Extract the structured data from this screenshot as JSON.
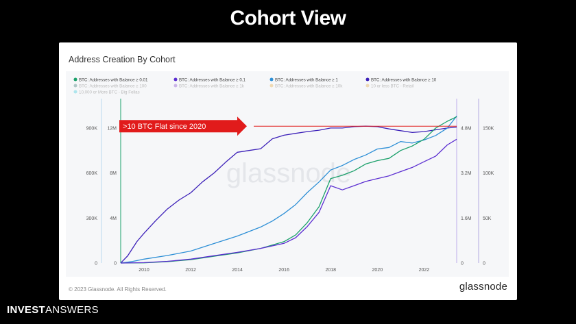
{
  "slide": {
    "title": "Cohort View",
    "footer_bold": "INVEST",
    "footer_thin": "ANSWERS"
  },
  "card": {
    "title": "Address Creation By Cohort",
    "copyright": "© 2023 Glassnode. All Rights Reserved.",
    "brand": "glassnode",
    "watermark": "glassnode"
  },
  "colors": {
    "green": "#1aa06a",
    "purple": "#5b2ed1",
    "blue": "#2d8fd6",
    "indigo": "#3b1fb8",
    "red": "#e11b1b",
    "faded": "#c9c9c9"
  },
  "chart_data": {
    "type": "line",
    "legend": [
      {
        "name": "BTC: Addresses with Balance ≥ 0.01",
        "color": "#1aa06a",
        "active": true
      },
      {
        "name": "BTC: Addresses with Balance ≥ 0.1",
        "color": "#5b2ed1",
        "active": true
      },
      {
        "name": "BTC: Addresses with Balance ≥ 1",
        "color": "#2d8fd6",
        "active": true
      },
      {
        "name": "BTC: Addresses with Balance ≥ 10",
        "color": "#3b1fb8",
        "active": true
      },
      {
        "name": "BTC: Addresses with Balance ≥ 100",
        "color": "#2a6e6a",
        "active": false
      },
      {
        "name": "BTC: Addresses with Balance ≥ 1k",
        "color": "#7a3ac8",
        "active": false
      },
      {
        "name": "BTC: Addresses with Balance ≥ 10k",
        "color": "#e0a030",
        "active": false
      },
      {
        "name": "10 or less BTC - Retail",
        "color": "#e0a030",
        "active": false
      },
      {
        "name": "10,000 or More BTC - Big Fellas",
        "color": "#28c4d8",
        "active": false
      }
    ],
    "x_ticks": [
      "2010",
      "2012",
      "2014",
      "2016",
      "2018",
      "2020",
      "2022"
    ],
    "x_range": [
      2009,
      2023.4
    ],
    "axes": {
      "left_outer": {
        "ticks": [
          "0",
          "300K",
          "600K",
          "900K"
        ],
        "range": [
          0,
          1050000
        ]
      },
      "left_inner": {
        "ticks": [
          "0",
          "4M",
          "8M",
          "12M"
        ],
        "range": [
          0,
          14000000
        ]
      },
      "right_inner": {
        "ticks": [
          "0",
          "1.6M",
          "3.2M",
          "4.8M"
        ],
        "range": [
          0,
          5600000
        ]
      },
      "right_outer": {
        "ticks": [
          "0",
          "50K",
          "100K",
          "150K"
        ],
        "range": [
          0,
          175000
        ]
      }
    },
    "series": [
      {
        "name": "BTC: Addresses with Balance ≥ 10",
        "color": "#3b1fb8",
        "axis": "right_outer",
        "points": [
          [
            2009.0,
            0
          ],
          [
            2009.3,
            8000
          ],
          [
            2009.7,
            24000
          ],
          [
            2010.0,
            33000
          ],
          [
            2010.5,
            47000
          ],
          [
            2011.0,
            60000
          ],
          [
            2011.5,
            70000
          ],
          [
            2012.0,
            78000
          ],
          [
            2012.5,
            90000
          ],
          [
            2013.0,
            100000
          ],
          [
            2013.5,
            112000
          ],
          [
            2014.0,
            123000
          ],
          [
            2014.5,
            125000
          ],
          [
            2015.0,
            127000
          ],
          [
            2015.5,
            138000
          ],
          [
            2016.0,
            142000
          ],
          [
            2016.5,
            144000
          ],
          [
            2017.0,
            146000
          ],
          [
            2017.5,
            147500
          ],
          [
            2018.0,
            150000
          ],
          [
            2018.5,
            150000
          ],
          [
            2019.0,
            151500
          ],
          [
            2019.5,
            152000
          ],
          [
            2020.0,
            151500
          ],
          [
            2020.5,
            149000
          ],
          [
            2021.0,
            147000
          ],
          [
            2021.5,
            145000
          ],
          [
            2022.0,
            146000
          ],
          [
            2022.5,
            148000
          ],
          [
            2023.0,
            150000
          ],
          [
            2023.4,
            151000
          ]
        ]
      },
      {
        "name": "BTC: Addresses with Balance ≥ 1",
        "color": "#2d8fd6",
        "axis": "left_outer",
        "points": [
          [
            2009.0,
            0
          ],
          [
            2009.5,
            10000
          ],
          [
            2010.0,
            26000
          ],
          [
            2011.0,
            50000
          ],
          [
            2012.0,
            80000
          ],
          [
            2013.0,
            130000
          ],
          [
            2014.0,
            180000
          ],
          [
            2014.5,
            210000
          ],
          [
            2015.0,
            240000
          ],
          [
            2015.5,
            280000
          ],
          [
            2016.0,
            330000
          ],
          [
            2016.5,
            390000
          ],
          [
            2017.0,
            470000
          ],
          [
            2017.5,
            540000
          ],
          [
            2018.0,
            620000
          ],
          [
            2018.5,
            650000
          ],
          [
            2019.0,
            690000
          ],
          [
            2019.5,
            720000
          ],
          [
            2020.0,
            760000
          ],
          [
            2020.5,
            770000
          ],
          [
            2021.0,
            810000
          ],
          [
            2021.5,
            800000
          ],
          [
            2022.0,
            820000
          ],
          [
            2022.5,
            850000
          ],
          [
            2023.0,
            900000
          ],
          [
            2023.2,
            940000
          ],
          [
            2023.4,
            980000
          ]
        ]
      },
      {
        "name": "BTC: Addresses with Balance ≥ 0.01",
        "color": "#1aa06a",
        "axis": "left_inner",
        "points": [
          [
            2009.0,
            0
          ],
          [
            2010.0,
            20000
          ],
          [
            2011.0,
            120000
          ],
          [
            2012.0,
            300000
          ],
          [
            2013.0,
            600000
          ],
          [
            2014.0,
            900000
          ],
          [
            2015.0,
            1300000
          ],
          [
            2016.0,
            1900000
          ],
          [
            2016.5,
            2500000
          ],
          [
            2017.0,
            3600000
          ],
          [
            2017.5,
            5000000
          ],
          [
            2018.0,
            7500000
          ],
          [
            2018.5,
            7800000
          ],
          [
            2019.0,
            8200000
          ],
          [
            2019.5,
            8800000
          ],
          [
            2020.0,
            9100000
          ],
          [
            2020.5,
            9300000
          ],
          [
            2021.0,
            10000000
          ],
          [
            2021.5,
            10400000
          ],
          [
            2022.0,
            11000000
          ],
          [
            2022.5,
            12000000
          ],
          [
            2023.0,
            12600000
          ],
          [
            2023.4,
            13000000
          ]
        ]
      },
      {
        "name": "BTC: Addresses with Balance ≥ 0.1",
        "color": "#5b2ed1",
        "axis": "right_inner",
        "points": [
          [
            2009.0,
            0
          ],
          [
            2010.0,
            15000
          ],
          [
            2011.0,
            60000
          ],
          [
            2012.0,
            140000
          ],
          [
            2013.0,
            260000
          ],
          [
            2014.0,
            380000
          ],
          [
            2015.0,
            520000
          ],
          [
            2016.0,
            700000
          ],
          [
            2016.5,
            900000
          ],
          [
            2017.0,
            1300000
          ],
          [
            2017.5,
            1800000
          ],
          [
            2018.0,
            2750000
          ],
          [
            2018.5,
            2600000
          ],
          [
            2019.0,
            2750000
          ],
          [
            2019.5,
            2900000
          ],
          [
            2020.0,
            3000000
          ],
          [
            2020.5,
            3100000
          ],
          [
            2021.0,
            3250000
          ],
          [
            2021.5,
            3400000
          ],
          [
            2022.0,
            3600000
          ],
          [
            2022.5,
            3800000
          ],
          [
            2023.0,
            4200000
          ],
          [
            2023.4,
            4400000
          ]
        ]
      }
    ],
    "annotation": {
      "label": ">10 BTC Flat since 2020",
      "hline_value": 152000,
      "hline_axis": "right_outer",
      "color": "#e11b1b"
    }
  }
}
